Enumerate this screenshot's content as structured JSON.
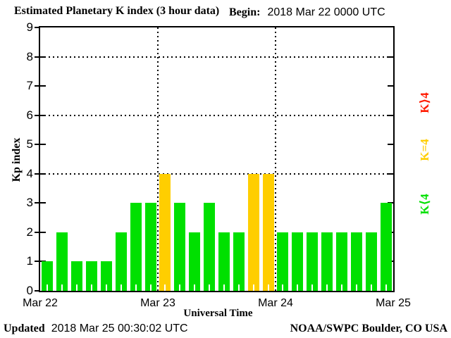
{
  "header": {
    "title": "Estimated Planetary K index (3 hour data)",
    "begin_label": "Begin:",
    "begin_value": "2018 Mar 22 0000 UTC"
  },
  "footer": {
    "updated_label": "Updated",
    "updated_value": "2018 Mar 25 00:30:02 UTC",
    "source": "NOAA/SWPC Boulder, CO USA"
  },
  "chart_data": {
    "type": "bar",
    "title": "Estimated Planetary K index (3 hour data)",
    "xlabel": "Universal Time",
    "ylabel": "Kp index",
    "ylim": [
      0,
      9
    ],
    "yticks": [
      0,
      1,
      2,
      3,
      4,
      5,
      6,
      7,
      8,
      9
    ],
    "gridlines_y": [
      4,
      6,
      8
    ],
    "grid": "dotted",
    "x_day_labels": [
      "Mar 22",
      "Mar 23",
      "Mar 24",
      "Mar 25"
    ],
    "days": 3,
    "bin_hours": 3,
    "values": [
      1,
      2,
      1,
      1,
      1,
      2,
      3,
      3,
      4,
      3,
      2,
      3,
      2,
      2,
      4,
      4,
      2,
      2,
      2,
      2,
      2,
      2,
      2,
      3
    ],
    "color_rule": "green if Kp<4, yellow if Kp=4, red if Kp>4",
    "colors": {
      "low": "#00E000",
      "mid": "#FFCE00",
      "high": "#FF1A00"
    }
  },
  "legend": {
    "items": [
      {
        "label": "K⟩4",
        "level": "high",
        "color": "#FF1A00"
      },
      {
        "label": "K=4",
        "level": "mid",
        "color": "#FFCE00"
      },
      {
        "label": "K⟨4",
        "level": "low",
        "color": "#00E000"
      }
    ]
  }
}
